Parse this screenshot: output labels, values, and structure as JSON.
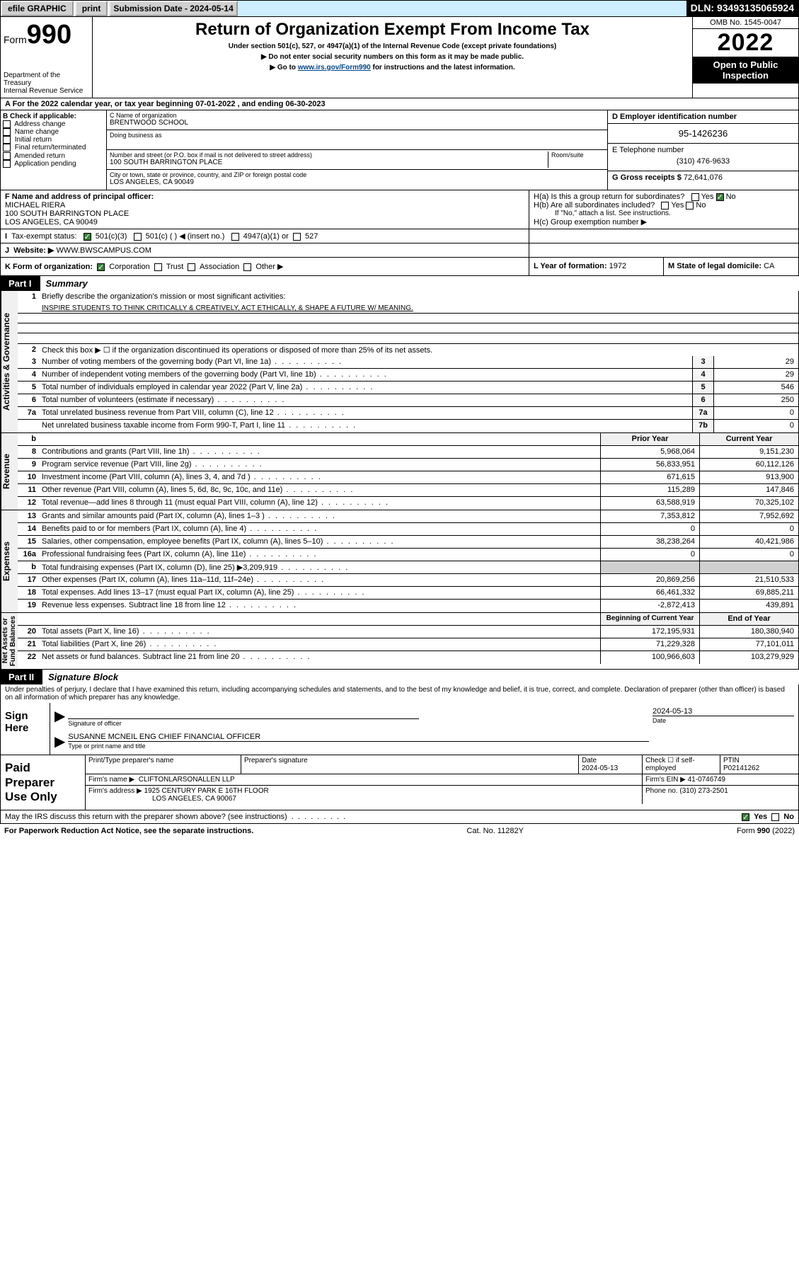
{
  "topbar": {
    "efile": "efile GRAPHIC",
    "print": "print",
    "submission": "Submission Date - 2024-05-14",
    "dln": "DLN: 93493135065924"
  },
  "header": {
    "form_label": "Form",
    "form_num": "990",
    "title": "Return of Organization Exempt From Income Tax",
    "subtitle": "Under section 501(c), 527, or 4947(a)(1) of the Internal Revenue Code (except private foundations)",
    "line2": "▶ Do not enter social security numbers on this form as it may be made public.",
    "line3_pre": "▶ Go to ",
    "line3_link": "www.irs.gov/Form990",
    "line3_post": " for instructions and the latest information.",
    "dept": "Department of the Treasury\nInternal Revenue Service",
    "omb": "OMB No. 1545-0047",
    "year": "2022",
    "inspection": "Open to Public\nInspection"
  },
  "rowA": "A For the 2022 calendar year, or tax year beginning 07-01-2022   , and ending 06-30-2023",
  "boxB": {
    "title": "B Check if applicable:",
    "items": [
      "Address change",
      "Name change",
      "Initial return",
      "Final return/terminated",
      "Amended return",
      "Application pending"
    ]
  },
  "boxC": {
    "name_lbl": "C Name of organization",
    "name": "BRENTWOOD SCHOOL",
    "dba_lbl": "Doing business as",
    "street_lbl": "Number and street (or P.O. box if mail is not delivered to street address)",
    "room_lbl": "Room/suite",
    "street": "100 SOUTH BARRINGTON PLACE",
    "city_lbl": "City or town, state or province, country, and ZIP or foreign postal code",
    "city": "LOS ANGELES, CA  90049"
  },
  "boxD": {
    "title": "D Employer identification number",
    "ein": "95-1426236",
    "tel_lbl": "E Telephone number",
    "tel": "(310) 476-9633",
    "gross_lbl": "G Gross receipts $",
    "gross": "72,641,076"
  },
  "rowF": {
    "label": "F Name and address of principal officer:",
    "name": "MICHAEL RIERA",
    "addr1": "100 SOUTH BARRINGTON PLACE",
    "addr2": "LOS ANGELES, CA  90049"
  },
  "rowH": {
    "a": "H(a)  Is this a group return for subordinates?",
    "b": "H(b)  Are all subordinates included?",
    "note": "If \"No,\" attach a list. See instructions.",
    "c": "H(c)  Group exemption number ▶",
    "yes": "Yes",
    "no": "No"
  },
  "rowI": {
    "label": "Tax-exempt status:",
    "c3": "501(c)(3)",
    "c": "501(c) (  ) ◀ (insert no.)",
    "a1": "4947(a)(1) or",
    "s527": "527"
  },
  "rowJ": {
    "label": "Website: ▶",
    "site": "WWW.BWSCAMPUS.COM"
  },
  "rowK": {
    "label": "K Form of organization:",
    "corp": "Corporation",
    "trust": "Trust",
    "assoc": "Association",
    "other": "Other ▶",
    "year_lbl": "L Year of formation:",
    "year": "1972",
    "state_lbl": "M State of legal domicile:",
    "state": "CA"
  },
  "partI": {
    "tab": "Part I",
    "title": "Summary"
  },
  "summary": {
    "sideA": "Activities & Governance",
    "sideR": "Revenue",
    "sideE": "Expenses",
    "sideN": "Net Assets or\nFund Balances",
    "l1": "Briefly describe the organization's mission or most significant activities:",
    "mission": "INSPIRE STUDENTS TO THINK CRITICALLY & CREATIVELY, ACT ETHICALLY, & SHAPE A FUTURE W/ MEANING.",
    "l2": "Check this box ▶ ☐  if the organization discontinued its operations or disposed of more than 25% of its net assets.",
    "lines_ag": [
      {
        "n": "3",
        "d": "Number of voting members of the governing body (Part VI, line 1a)",
        "b": "3",
        "v": "29"
      },
      {
        "n": "4",
        "d": "Number of independent voting members of the governing body (Part VI, line 1b)",
        "b": "4",
        "v": "29"
      },
      {
        "n": "5",
        "d": "Total number of individuals employed in calendar year 2022 (Part V, line 2a)",
        "b": "5",
        "v": "546"
      },
      {
        "n": "6",
        "d": "Total number of volunteers (estimate if necessary)",
        "b": "6",
        "v": "250"
      },
      {
        "n": "7a",
        "d": "Total unrelated business revenue from Part VIII, column (C), line 12",
        "b": "7a",
        "v": "0"
      },
      {
        "n": "",
        "d": "Net unrelated business taxable income from Form 990-T, Part I, line 11",
        "b": "7b",
        "v": "0"
      }
    ],
    "col_head_prior": "Prior Year",
    "col_head_curr": "Current Year",
    "lines_rev": [
      {
        "n": "8",
        "d": "Contributions and grants (Part VIII, line 1h)",
        "p": "5,968,064",
        "c": "9,151,230"
      },
      {
        "n": "9",
        "d": "Program service revenue (Part VIII, line 2g)",
        "p": "56,833,951",
        "c": "60,112,126"
      },
      {
        "n": "10",
        "d": "Investment income (Part VIII, column (A), lines 3, 4, and 7d )",
        "p": "671,615",
        "c": "913,900"
      },
      {
        "n": "11",
        "d": "Other revenue (Part VIII, column (A), lines 5, 6d, 8c, 9c, 10c, and 11e)",
        "p": "115,289",
        "c": "147,846"
      },
      {
        "n": "12",
        "d": "Total revenue—add lines 8 through 11 (must equal Part VIII, column (A), line 12)",
        "p": "63,588,919",
        "c": "70,325,102"
      }
    ],
    "lines_exp": [
      {
        "n": "13",
        "d": "Grants and similar amounts paid (Part IX, column (A), lines 1–3 )",
        "p": "7,353,812",
        "c": "7,952,692"
      },
      {
        "n": "14",
        "d": "Benefits paid to or for members (Part IX, column (A), line 4)",
        "p": "0",
        "c": "0"
      },
      {
        "n": "15",
        "d": "Salaries, other compensation, employee benefits (Part IX, column (A), lines 5–10)",
        "p": "38,238,264",
        "c": "40,421,986"
      },
      {
        "n": "16a",
        "d": "Professional fundraising fees (Part IX, column (A), line 11e)",
        "p": "0",
        "c": "0"
      },
      {
        "n": "b",
        "d": "Total fundraising expenses (Part IX, column (D), line 25) ▶3,209,919",
        "p": "",
        "c": "",
        "grey": true
      },
      {
        "n": "17",
        "d": "Other expenses (Part IX, column (A), lines 11a–11d, 11f–24e)",
        "p": "20,869,256",
        "c": "21,510,533"
      },
      {
        "n": "18",
        "d": "Total expenses. Add lines 13–17 (must equal Part IX, column (A), line 25)",
        "p": "66,461,332",
        "c": "69,885,211"
      },
      {
        "n": "19",
        "d": "Revenue less expenses. Subtract line 18 from line 12",
        "p": "-2,872,413",
        "c": "439,891"
      }
    ],
    "col_head_boy": "Beginning of Current Year",
    "col_head_eoy": "End of Year",
    "lines_net": [
      {
        "n": "20",
        "d": "Total assets (Part X, line 16)",
        "p": "172,195,931",
        "c": "180,380,940"
      },
      {
        "n": "21",
        "d": "Total liabilities (Part X, line 26)",
        "p": "71,229,328",
        "c": "77,101,011"
      },
      {
        "n": "22",
        "d": "Net assets or fund balances. Subtract line 21 from line 20",
        "p": "100,966,603",
        "c": "103,279,929"
      }
    ]
  },
  "partII": {
    "tab": "Part II",
    "title": "Signature Block"
  },
  "sig": {
    "declaration": "Under penalties of perjury, I declare that I have examined this return, including accompanying schedules and statements, and to the best of my knowledge and belief, it is true, correct, and complete. Declaration of preparer (other than officer) is based on all information of which preparer has any knowledge.",
    "sign_here": "Sign\nHere",
    "sig_officer_lbl": "Signature of officer",
    "date_lbl": "Date",
    "date": "2024-05-13",
    "name": "SUSANNE MCNEIL ENG  CHIEF FINANCIAL OFFICER",
    "name_lbl": "Type or print name and title"
  },
  "paid": {
    "label": "Paid\nPreparer\nUse Only",
    "h1": "Print/Type preparer's name",
    "h2": "Preparer's signature",
    "h3": "Date",
    "h4": "Check ☐ if self-employed",
    "h5": "PTIN",
    "date": "2024-05-13",
    "ptin": "P02141262",
    "firm_lbl": "Firm's name   ▶",
    "firm": "CLIFTONLARSONALLEN LLP",
    "ein_lbl": "Firm's EIN ▶",
    "ein": "41-0746749",
    "addr_lbl": "Firm's address ▶",
    "addr1": "1925 CENTURY PARK E 16TH FLOOR",
    "addr2": "LOS ANGELES, CA  90067",
    "phone_lbl": "Phone no.",
    "phone": "(310) 273-2501"
  },
  "discuss": "May the IRS discuss this return with the preparer shown above? (see instructions)",
  "footer": {
    "l": "For Paperwork Reduction Act Notice, see the separate instructions.",
    "m": "Cat. No. 11282Y",
    "r": "Form 990 (2022)"
  },
  "colors": {
    "checked_green": "#3b7e3b",
    "link": "#004488"
  }
}
